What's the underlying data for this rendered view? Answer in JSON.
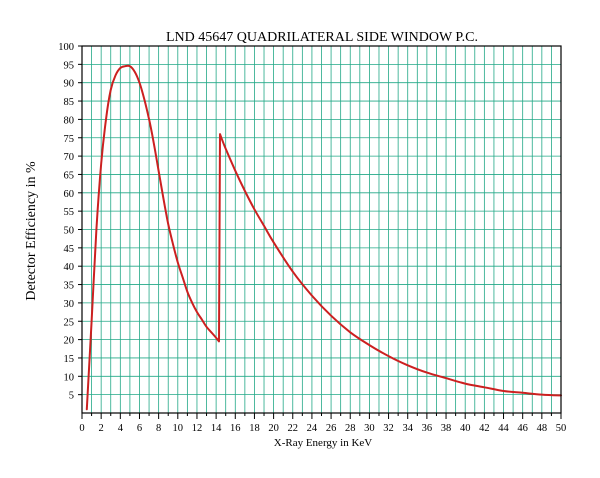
{
  "chart_data": {
    "type": "line",
    "title": "LND 45647 QUADRILATERAL SIDE WINDOW P.C.",
    "xlabel": "X-Ray Energy in KeV",
    "ylabel": "Detector Efficiency in %",
    "xlim": [
      0,
      50
    ],
    "ylim": [
      0,
      100
    ],
    "x_ticks": [
      0,
      2,
      4,
      6,
      8,
      10,
      12,
      14,
      16,
      18,
      20,
      22,
      24,
      26,
      28,
      30,
      32,
      34,
      36,
      38,
      40,
      42,
      44,
      46,
      48,
      50
    ],
    "x_tick_labels": [
      "0",
      "2",
      "4",
      "6",
      "8",
      "10",
      "12",
      "14",
      "16",
      "18",
      "20",
      "22",
      "24",
      "26",
      "28",
      "30",
      "32",
      "34",
      "36",
      "38",
      "40",
      "42",
      "44",
      "46",
      "48",
      "50"
    ],
    "y_ticks": [
      5,
      10,
      15,
      20,
      25,
      30,
      35,
      40,
      45,
      50,
      55,
      60,
      65,
      70,
      75,
      80,
      85,
      90,
      95,
      100
    ],
    "y_tick_labels": [
      "5",
      "10",
      "15",
      "20",
      "25",
      "30",
      "35",
      "40",
      "45",
      "50",
      "55",
      "60",
      "65",
      "70",
      "75",
      "80",
      "85",
      "90",
      "95",
      "100"
    ],
    "grid": true,
    "grid_color": "#22a887",
    "line_color": "#cc2020",
    "series": [
      {
        "x": [
          0.5,
          1.0,
          1.5,
          2.0,
          2.5,
          3.0,
          3.5,
          4.0,
          4.5,
          5.0,
          5.5,
          6.0,
          6.5,
          7.0,
          7.5,
          8.0,
          8.5,
          9.0,
          9.5,
          10.0,
          10.5,
          11.0,
          11.5,
          12.0,
          12.5,
          13.0,
          13.5,
          14.0,
          14.3,
          14.4,
          15.0,
          16.0,
          17.0,
          18.0,
          19.0,
          20.0,
          22.0,
          24.0,
          26.0,
          28.0,
          30.0,
          32.0,
          34.0,
          36.0,
          38.0,
          40.0,
          42.0,
          44.0,
          46.0,
          48.0,
          50.0
        ],
        "values": [
          1,
          25,
          50,
          68,
          80,
          88,
          92,
          94,
          94.5,
          94.5,
          93,
          90,
          85.5,
          80,
          73.5,
          66,
          58.5,
          51.5,
          46,
          41,
          37,
          33,
          30,
          27.5,
          25.5,
          23.5,
          22,
          20.5,
          19.5,
          76,
          72,
          66,
          60.5,
          55.5,
          51,
          46.5,
          38.5,
          32,
          26.5,
          22,
          18.5,
          15.5,
          13,
          11,
          9.5,
          8,
          7,
          6,
          5.5,
          5,
          4.8
        ]
      }
    ]
  }
}
